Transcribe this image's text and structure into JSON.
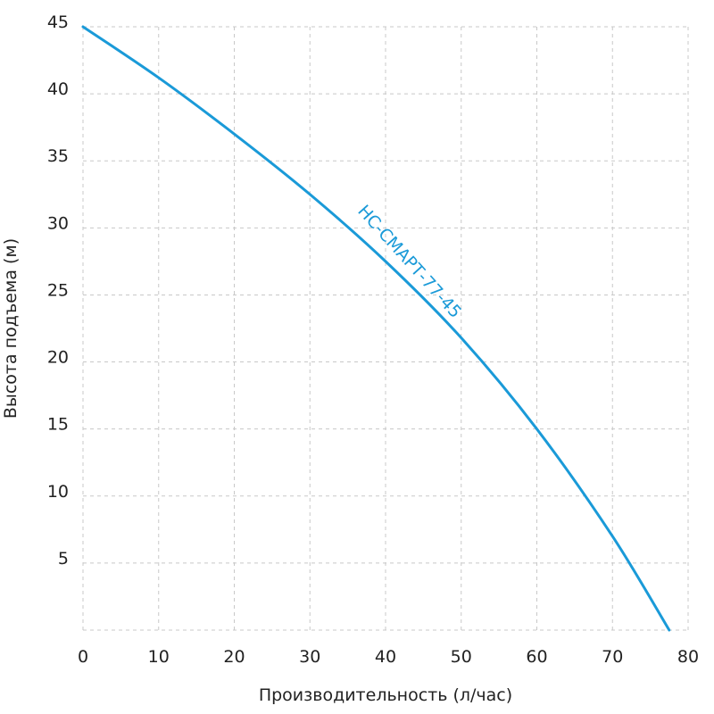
{
  "chart_data": {
    "type": "line",
    "xlabel": "Производительность (л/час)",
    "ylabel": "Высота подъема (м)",
    "xlim": [
      0,
      80
    ],
    "ylim": [
      0,
      45
    ],
    "x_ticks": [
      "0",
      "10",
      "20",
      "30",
      "40",
      "50",
      "60",
      "70",
      "80"
    ],
    "y_ticks": [
      "5",
      "10",
      "15",
      "20",
      "25",
      "30",
      "35",
      "40",
      "45"
    ],
    "grid": true,
    "series": [
      {
        "name": "НС-СМАРТ-77-45",
        "color": "#1a9ad8",
        "x": [
          0,
          10,
          20,
          30,
          40,
          50,
          60,
          70,
          77.5
        ],
        "y": [
          45,
          41.2,
          37,
          32.5,
          27.5,
          21.8,
          15,
          7,
          0
        ]
      }
    ]
  }
}
